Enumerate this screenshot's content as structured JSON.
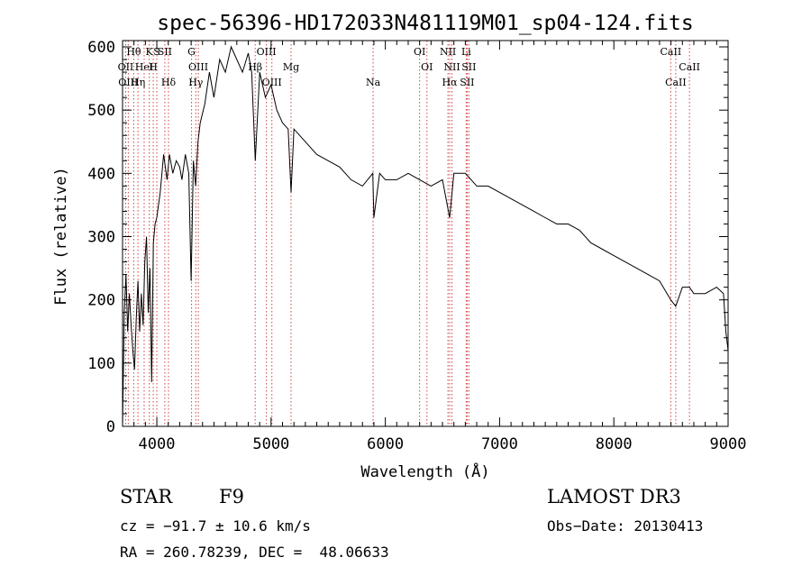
{
  "chart_data": {
    "type": "line",
    "title": "spec-56396-HD172033N481119M01_sp04-124.fits",
    "xlabel": "Wavelength (Å)",
    "ylabel": "Flux (relative)",
    "xlim": [
      3700,
      9000
    ],
    "ylim": [
      0,
      610
    ],
    "xticks": [
      4000,
      5000,
      6000,
      7000,
      8000,
      9000
    ],
    "xtick_labels": [
      "4000",
      "5000",
      "6000",
      "7000",
      "8000",
      "9000"
    ],
    "yticks": [
      0,
      100,
      200,
      300,
      400,
      500,
      600
    ],
    "ytick_labels": [
      "0",
      "100",
      "200",
      "300",
      "400",
      "500",
      "600"
    ],
    "series": [
      {
        "name": "flux",
        "x": [
          3700,
          3715,
          3730,
          3745,
          3760,
          3775,
          3790,
          3805,
          3820,
          3835,
          3850,
          3865,
          3880,
          3895,
          3910,
          3925,
          3940,
          3955,
          3970,
          3985,
          4000,
          4030,
          4060,
          4090,
          4110,
          4140,
          4170,
          4200,
          4220,
          4250,
          4280,
          4300,
          4320,
          4340,
          4360,
          4380,
          4420,
          4460,
          4500,
          4550,
          4600,
          4650,
          4700,
          4750,
          4800,
          4830,
          4862,
          4900,
          4950,
          5000,
          5050,
          5100,
          5150,
          5175,
          5200,
          5250,
          5300,
          5400,
          5500,
          5600,
          5700,
          5800,
          5890,
          5900,
          5950,
          6000,
          6100,
          6200,
          6300,
          6400,
          6500,
          6563,
          6600,
          6700,
          6800,
          6900,
          7000,
          7100,
          7200,
          7300,
          7400,
          7500,
          7600,
          7700,
          7800,
          7900,
          8000,
          8100,
          8200,
          8300,
          8400,
          8498,
          8542,
          8600,
          8662,
          8700,
          8800,
          8900,
          8960,
          8980,
          9000
        ],
        "y": [
          0,
          180,
          240,
          150,
          210,
          160,
          120,
          90,
          170,
          230,
          150,
          210,
          160,
          260,
          300,
          180,
          250,
          70,
          290,
          320,
          330,
          370,
          430,
          390,
          430,
          400,
          420,
          410,
          390,
          430,
          400,
          230,
          420,
          380,
          450,
          480,
          510,
          560,
          520,
          580,
          560,
          600,
          580,
          560,
          590,
          560,
          420,
          560,
          520,
          540,
          500,
          480,
          470,
          370,
          470,
          460,
          450,
          430,
          420,
          410,
          390,
          380,
          400,
          330,
          400,
          390,
          390,
          400,
          390,
          380,
          390,
          330,
          400,
          400,
          380,
          380,
          370,
          360,
          350,
          340,
          330,
          320,
          320,
          310,
          290,
          280,
          270,
          260,
          250,
          240,
          230,
          200,
          190,
          220,
          220,
          210,
          210,
          220,
          210,
          150,
          120
        ]
      }
    ],
    "line_markers": [
      {
        "name": "Hθ",
        "wavelength": 3798
      },
      {
        "name": "OII",
        "wavelength": 3727
      },
      {
        "name": "OIII",
        "wavelength": 3750
      },
      {
        "name": "K",
        "wavelength": 3934
      },
      {
        "name": "HeI",
        "wavelength": 3889
      },
      {
        "name": "Hη",
        "wavelength": 3835
      },
      {
        "name": "S",
        "wavelength": 4000
      },
      {
        "name": "H",
        "wavelength": 3969
      },
      {
        "name": "Hδ",
        "wavelength": 4102
      },
      {
        "name": "SII",
        "wavelength": 4070
      },
      {
        "name": "OIII",
        "wavelength": 4363
      },
      {
        "name": "Hγ",
        "wavelength": 4341
      },
      {
        "name": "G",
        "wavelength": 4304
      },
      {
        "name": "Hβ",
        "wavelength": 4861
      },
      {
        "name": "OIII",
        "wavelength": 5007
      },
      {
        "name": "OIII",
        "wavelength": 4959
      },
      {
        "name": "Mg",
        "wavelength": 5175
      },
      {
        "name": "Na",
        "wavelength": 5893
      },
      {
        "name": "OI",
        "wavelength": 6300
      },
      {
        "name": "OI",
        "wavelength": 6364
      },
      {
        "name": "Hα",
        "wavelength": 6563
      },
      {
        "name": "NII",
        "wavelength": 6548
      },
      {
        "name": "NII",
        "wavelength": 6583
      },
      {
        "name": "SII",
        "wavelength": 6716
      },
      {
        "name": "Li",
        "wavelength": 6708
      },
      {
        "name": "SII",
        "wavelength": 6731
      },
      {
        "name": "CaII",
        "wavelength": 8542
      },
      {
        "name": "CaII",
        "wavelength": 8498
      },
      {
        "name": "CaII",
        "wavelength": 8662
      }
    ]
  },
  "info": {
    "object_class": "STAR",
    "subclass": "F9",
    "cz": "cz = −91.7 ± 10.6 km/s",
    "coords": "RA = 260.78239, DEC =  48.06633",
    "survey": "LAMOST DR3",
    "obs_date": "Obs−Date: 20130413"
  }
}
